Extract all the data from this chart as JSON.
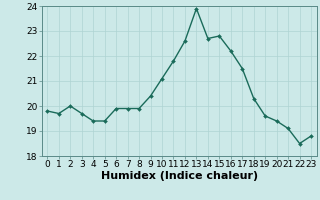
{
  "x": [
    0,
    1,
    2,
    3,
    4,
    5,
    6,
    7,
    8,
    9,
    10,
    11,
    12,
    13,
    14,
    15,
    16,
    17,
    18,
    19,
    20,
    21,
    22,
    23
  ],
  "y": [
    19.8,
    19.7,
    20.0,
    19.7,
    19.4,
    19.4,
    19.9,
    19.9,
    19.9,
    20.4,
    21.1,
    21.8,
    22.6,
    23.9,
    22.7,
    22.8,
    22.2,
    21.5,
    20.3,
    19.6,
    19.4,
    19.1,
    18.5,
    18.8
  ],
  "line_color": "#1a6b5a",
  "marker": "D",
  "marker_size": 2.0,
  "bg_color": "#cce9e8",
  "grid_color": "#afd4d3",
  "xlabel": "Humidex (Indice chaleur)",
  "xlabel_fontsize": 8,
  "ylim": [
    18,
    24
  ],
  "xlim": [
    -0.5,
    23.5
  ],
  "yticks": [
    18,
    19,
    20,
    21,
    22,
    23,
    24
  ],
  "xtick_labels": [
    "0",
    "1",
    "2",
    "3",
    "4",
    "5",
    "6",
    "7",
    "8",
    "9",
    "10",
    "11",
    "12",
    "13",
    "14",
    "15",
    "16",
    "17",
    "18",
    "19",
    "20",
    "21",
    "22",
    "23"
  ],
  "tick_fontsize": 6.5,
  "line_width": 1.0
}
